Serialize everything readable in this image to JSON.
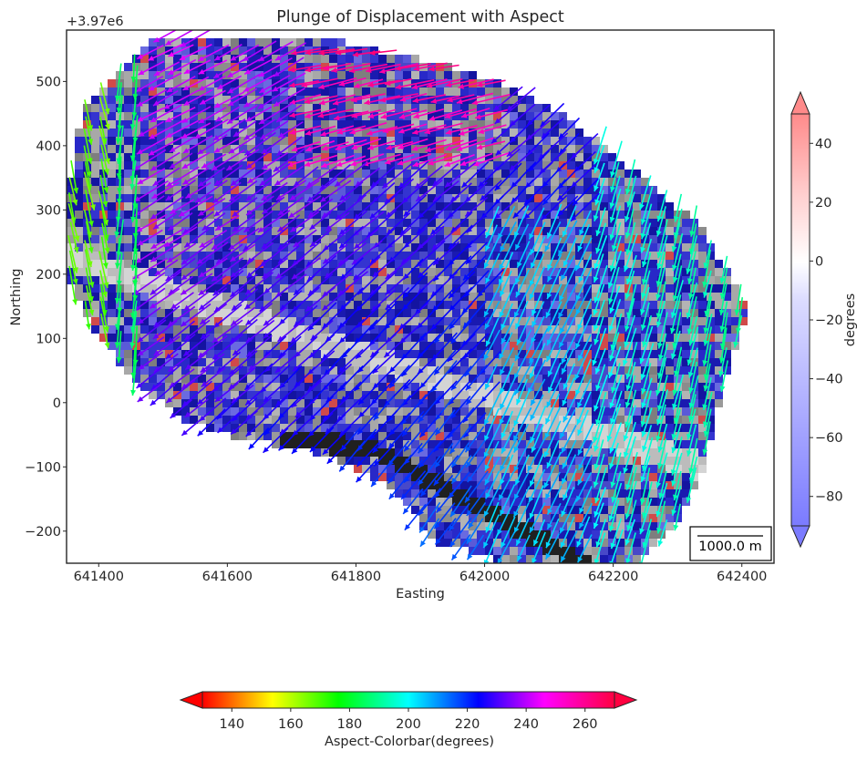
{
  "chart_data": {
    "type": "quiver",
    "title": "Plunge of Displacement with Aspect",
    "xlabel": "Easting",
    "ylabel": "Northing",
    "y_offset_text": "+3.97e6",
    "x_ticks": [
      "641400",
      "641600",
      "641800",
      "642000",
      "642200",
      "642400"
    ],
    "x_tick_values": [
      641400,
      641600,
      641800,
      642000,
      642200,
      642400
    ],
    "y_ticks": [
      "500",
      "400",
      "300",
      "200",
      "100",
      "0",
      "−100",
      "−200"
    ],
    "y_tick_values": [
      500,
      400,
      300,
      200,
      100,
      0,
      -100,
      -200
    ],
    "xlim": [
      641350,
      642450
    ],
    "ylim": [
      -250,
      580
    ],
    "grid": false,
    "scale_bar_label": "1000.0 m",
    "plunge_colorbar": {
      "label": "degrees",
      "ticks": [
        "40",
        "20",
        "0",
        "−20",
        "−40",
        "−60",
        "−80"
      ],
      "tick_values": [
        40,
        20,
        0,
        -20,
        -40,
        -60,
        -80
      ],
      "range": [
        -90,
        50
      ],
      "colormap": "bwr",
      "extend": "both"
    },
    "aspect_colorbar": {
      "label": "Aspect-Colorbar(degrees)",
      "ticks": [
        "140",
        "160",
        "180",
        "200",
        "220",
        "240",
        "260"
      ],
      "tick_values": [
        140,
        160,
        180,
        200,
        220,
        240,
        260
      ],
      "range": [
        130,
        270
      ],
      "colormap": "hsv",
      "extend": "both"
    },
    "colors": {
      "plunge_negative": "#3a3aff",
      "plunge_positive": "#ff5555",
      "hillshade": "#9a9a9a",
      "outside": "#ffffff"
    },
    "vector_field": {
      "description_free": true,
      "aspect_region_deg": {
        "upper_center": 265,
        "center": 238,
        "left_edge": 165,
        "right_side": 195
      }
    }
  }
}
